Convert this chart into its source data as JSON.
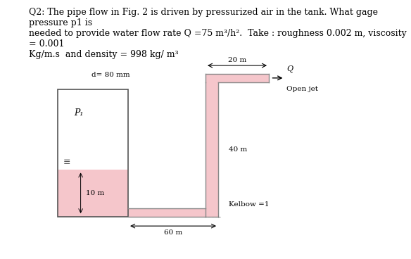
{
  "title_text": "Q2: The pipe flow in Fig. 2 is driven by pressurized air in the tank. What gage pressure p1 is\nneeded to provide water flow rate Q =75 m³/h².  Take : roughness 0.002 m, viscosity = 0.001\nKg/m.s  and density = 998 kg/ m³",
  "bg_color": "#ffffff",
  "tank_fill_color": "#f5c6cb",
  "pipe_fill_color": "#f5c6cb",
  "pipe_edge_color": "#888888",
  "tank_edge_color": "#555555",
  "label_p1": "P₁",
  "label_d": "d= 80 mm",
  "label_20m": "20 m",
  "label_40m": "40 m",
  "label_10m": "10 m",
  "label_60m": "60 m",
  "label_Q": "Q",
  "label_openjet": "Open jet",
  "label_kelbow": "Kelbow =1",
  "title_fontsize": 9,
  "label_fontsize": 8
}
